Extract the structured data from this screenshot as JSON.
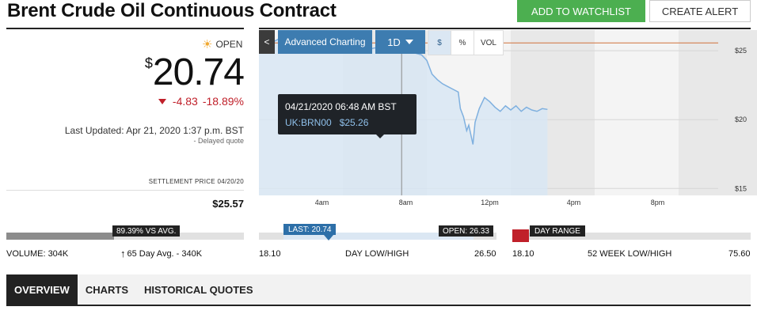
{
  "header": {
    "title": "Brent Crude Oil Continuous Contract",
    "add_watchlist": "ADD TO WATCHLIST",
    "create_alert": "CREATE ALERT"
  },
  "quote": {
    "status": "OPEN",
    "currency_symbol": "$",
    "price": "20.74",
    "change": "-4.83",
    "change_pct": "-18.89%",
    "last_updated": "Last Updated: Apr 21, 2020 1:37 p.m. BST",
    "delayed": "- Delayed quote",
    "settlement_label": "SETTLEMENT PRICE 04/20/20",
    "settlement_value": "$25.57"
  },
  "toolbar": {
    "back": "<",
    "advanced": "Advanced Charting",
    "interval": "1D",
    "dollar": "$",
    "percent": "%",
    "vol": "VOL"
  },
  "tooltip": {
    "date": "04/21/2020 06:48 AM BST",
    "symbol": "UK:BRN00",
    "value": "$25.26"
  },
  "chart_data": {
    "type": "area",
    "x_ticks": [
      "4am",
      "8am",
      "12pm",
      "4pm",
      "8pm"
    ],
    "y_ticks": [
      "$25",
      "$20",
      "$15"
    ],
    "ylim": [
      14.5,
      26.5
    ],
    "reference_line": 25.57,
    "x_unit": "hour_of_day",
    "xlim": [
      0,
      24
    ],
    "x": [
      0,
      0.25,
      0.5,
      0.75,
      1,
      1.25,
      1.5,
      1.75,
      2,
      2.25,
      2.5,
      2.75,
      3,
      3.25,
      3.5,
      3.75,
      4,
      4.25,
      4.5,
      4.75,
      5,
      5.25,
      5.5,
      5.75,
      6,
      6.25,
      6.5,
      6.8,
      7,
      7.25,
      7.5,
      7.75,
      8,
      8.25,
      8.5,
      8.75,
      9,
      9.25,
      9.5,
      9.6,
      9.75,
      9.9,
      10,
      10.1,
      10.2,
      10.3,
      10.5,
      10.75,
      11,
      11.25,
      11.5,
      11.75,
      12,
      12.25,
      12.5,
      12.75,
      13,
      13.25,
      13.5,
      13.75
    ],
    "y": [
      26.0,
      25.3,
      25.8,
      25.7,
      25.9,
      25.6,
      25.5,
      25.7,
      25.6,
      25.4,
      25.5,
      25.3,
      25.2,
      25.1,
      25.2,
      25.0,
      25.1,
      25.0,
      25.1,
      25.2,
      25.2,
      25.1,
      25.2,
      25.2,
      25.1,
      25.2,
      25.2,
      25.26,
      25.1,
      25.0,
      24.8,
      24.7,
      24.3,
      23.3,
      22.9,
      22.6,
      22.4,
      22.2,
      22.0,
      20.8,
      20.2,
      19.2,
      19.6,
      18.9,
      18.2,
      19.8,
      20.8,
      21.6,
      21.3,
      20.9,
      20.6,
      21.0,
      20.7,
      21.0,
      20.6,
      20.9,
      20.7,
      20.6,
      20.8,
      20.74
    ]
  },
  "volume": {
    "tag": "89.39% VS AVG.",
    "fill_fraction": 0.4536,
    "label": "VOLUME: 304K",
    "avg_label": "65 Day Avg. - 340K"
  },
  "day_range": {
    "last_tag": "LAST: 20.74",
    "open_tag": "OPEN: 26.33",
    "low": "18.10",
    "label": "DAY LOW/HIGH",
    "high": "26.50"
  },
  "week52": {
    "tag": "DAY RANGE",
    "low": "18.10",
    "label": "52 WEEK LOW/HIGH",
    "high": "75.60"
  },
  "tabs": [
    "OVERVIEW",
    "CHARTS",
    "HISTORICAL QUOTES"
  ],
  "colors": {
    "accent_green": "#4caf50",
    "accent_blue": "#3d7cb0",
    "negative_red": "#c0202a"
  }
}
